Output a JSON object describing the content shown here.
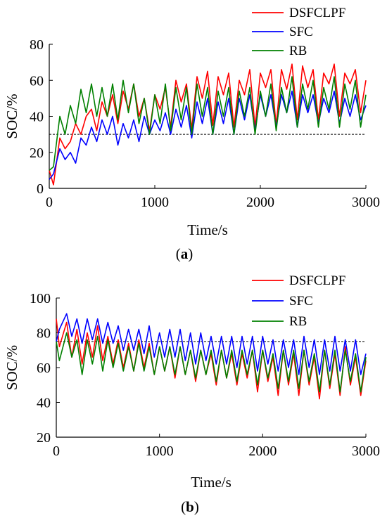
{
  "chart_data": [
    {
      "type": "line",
      "caption": "(a)",
      "caption_letter": "a",
      "xlabel": "Time/s",
      "ylabel": "SOC/%",
      "xlim": [
        0,
        3000
      ],
      "ylim": [
        0,
        80
      ],
      "xticks": [
        0,
        1000,
        2000,
        3000
      ],
      "yticks": [
        0,
        20,
        40,
        60,
        80
      ],
      "grid": false,
      "legend_position": "top-right",
      "reference_line": {
        "y": 30,
        "style": "dashed",
        "color": "#000000"
      },
      "series": [
        {
          "name": "DSFCLPF",
          "color": "#ff0000",
          "x": [
            0,
            40,
            100,
            150,
            200,
            250,
            300,
            350,
            400,
            450,
            500,
            550,
            600,
            650,
            700,
            750,
            800,
            850,
            900,
            950,
            1000,
            1050,
            1100,
            1150,
            1200,
            1250,
            1300,
            1350,
            1400,
            1450,
            1500,
            1550,
            1600,
            1650,
            1700,
            1750,
            1800,
            1850,
            1900,
            1950,
            2000,
            2050,
            2100,
            2150,
            2200,
            2250,
            2300,
            2350,
            2400,
            2450,
            2500,
            2550,
            2600,
            2650,
            2700,
            2750,
            2800,
            2850,
            2900,
            2950,
            3000
          ],
          "y": [
            10,
            2,
            28,
            22,
            26,
            36,
            30,
            40,
            44,
            32,
            48,
            40,
            52,
            36,
            54,
            44,
            58,
            40,
            50,
            32,
            52,
            44,
            56,
            34,
            60,
            48,
            58,
            33,
            62,
            50,
            65,
            35,
            62,
            52,
            64,
            34,
            60,
            52,
            66,
            34,
            64,
            56,
            66,
            35,
            66,
            55,
            69,
            38,
            68,
            56,
            66,
            38,
            64,
            58,
            69,
            40,
            64,
            58,
            66,
            42,
            60
          ]
        },
        {
          "name": "SFC",
          "color": "#0000ff",
          "x": [
            0,
            40,
            100,
            150,
            200,
            250,
            300,
            350,
            400,
            450,
            500,
            550,
            600,
            650,
            700,
            750,
            800,
            850,
            900,
            950,
            1000,
            1050,
            1100,
            1150,
            1200,
            1250,
            1300,
            1350,
            1400,
            1450,
            1500,
            1550,
            1600,
            1650,
            1700,
            1750,
            1800,
            1850,
            1900,
            1950,
            2000,
            2050,
            2100,
            2150,
            2200,
            2250,
            2300,
            2350,
            2400,
            2450,
            2500,
            2550,
            2600,
            2650,
            2700,
            2750,
            2800,
            2850,
            2900,
            2950,
            3000
          ],
          "y": [
            5,
            8,
            22,
            16,
            20,
            14,
            28,
            24,
            34,
            26,
            38,
            30,
            40,
            24,
            36,
            28,
            38,
            26,
            40,
            30,
            38,
            32,
            42,
            30,
            44,
            34,
            46,
            28,
            48,
            36,
            50,
            30,
            48,
            36,
            50,
            30,
            50,
            38,
            52,
            32,
            52,
            40,
            52,
            34,
            52,
            42,
            54,
            34,
            52,
            42,
            52,
            36,
            50,
            42,
            54,
            36,
            50,
            40,
            52,
            38,
            46
          ]
        },
        {
          "name": "RB",
          "color": "#008000",
          "x": [
            0,
            40,
            100,
            150,
            200,
            250,
            300,
            350,
            400,
            450,
            500,
            550,
            600,
            650,
            700,
            750,
            800,
            850,
            900,
            950,
            1000,
            1050,
            1100,
            1150,
            1200,
            1250,
            1300,
            1350,
            1400,
            1450,
            1500,
            1550,
            1600,
            1650,
            1700,
            1750,
            1800,
            1850,
            1900,
            1950,
            2000,
            2050,
            2100,
            2150,
            2200,
            2250,
            2300,
            2350,
            2400,
            2450,
            2500,
            2550,
            2600,
            2650,
            2700,
            2750,
            2800,
            2850,
            2900,
            2950,
            3000
          ],
          "y": [
            10,
            12,
            40,
            30,
            46,
            36,
            55,
            42,
            58,
            40,
            56,
            40,
            58,
            38,
            60,
            42,
            58,
            36,
            50,
            30,
            52,
            36,
            58,
            32,
            56,
            38,
            56,
            30,
            58,
            40,
            56,
            30,
            54,
            40,
            56,
            30,
            54,
            40,
            56,
            30,
            54,
            40,
            58,
            32,
            56,
            42,
            62,
            34,
            58,
            44,
            60,
            34,
            56,
            44,
            62,
            34,
            58,
            44,
            60,
            34,
            52
          ]
        }
      ]
    },
    {
      "type": "line",
      "caption": "(b)",
      "caption_letter": "b",
      "xlabel": "Time/s",
      "ylabel": "SOC/%",
      "xlim": [
        0,
        3000
      ],
      "ylim": [
        20,
        100
      ],
      "xticks": [
        0,
        1000,
        2000,
        3000
      ],
      "yticks": [
        20,
        40,
        60,
        80,
        100
      ],
      "grid": false,
      "legend_position": "top-right",
      "reference_line": {
        "y": 75,
        "style": "dashed",
        "color": "#000000"
      },
      "series": [
        {
          "name": "DSFCLPF",
          "color": "#ff0000",
          "x": [
            0,
            30,
            100,
            150,
            200,
            250,
            300,
            350,
            400,
            450,
            500,
            550,
            600,
            650,
            700,
            750,
            800,
            850,
            900,
            950,
            1000,
            1050,
            1100,
            1150,
            1200,
            1250,
            1300,
            1350,
            1400,
            1450,
            1500,
            1550,
            1600,
            1650,
            1700,
            1750,
            1800,
            1850,
            1900,
            1950,
            2000,
            2050,
            2100,
            2150,
            2200,
            2250,
            2300,
            2350,
            2400,
            2450,
            2500,
            2550,
            2600,
            2650,
            2700,
            2750,
            2800,
            2850,
            2900,
            2950,
            3000
          ],
          "y": [
            88,
            72,
            86,
            66,
            82,
            62,
            80,
            66,
            84,
            64,
            78,
            62,
            76,
            60,
            74,
            58,
            76,
            60,
            74,
            56,
            72,
            58,
            72,
            54,
            72,
            56,
            70,
            52,
            70,
            56,
            68,
            50,
            70,
            54,
            68,
            50,
            68,
            54,
            70,
            46,
            70,
            52,
            66,
            44,
            70,
            50,
            68,
            44,
            70,
            50,
            66,
            42,
            70,
            48,
            68,
            44,
            72,
            50,
            66,
            44,
            64
          ]
        },
        {
          "name": "SFC",
          "color": "#0000ff",
          "x": [
            0,
            30,
            100,
            150,
            200,
            250,
            300,
            350,
            400,
            450,
            500,
            550,
            600,
            650,
            700,
            750,
            800,
            850,
            900,
            950,
            1000,
            1050,
            1100,
            1150,
            1200,
            1250,
            1300,
            1350,
            1400,
            1450,
            1500,
            1550,
            1600,
            1650,
            1700,
            1750,
            1800,
            1850,
            1900,
            1950,
            2000,
            2050,
            2100,
            2150,
            2200,
            2250,
            2300,
            2350,
            2400,
            2450,
            2500,
            2550,
            2600,
            2650,
            2700,
            2750,
            2800,
            2850,
            2900,
            2950,
            3000
          ],
          "y": [
            75,
            82,
            91,
            78,
            88,
            74,
            88,
            76,
            88,
            74,
            86,
            74,
            84,
            70,
            82,
            70,
            82,
            68,
            84,
            66,
            80,
            66,
            82,
            66,
            82,
            64,
            80,
            62,
            80,
            64,
            78,
            62,
            78,
            62,
            78,
            60,
            78,
            62,
            78,
            58,
            78,
            62,
            76,
            58,
            76,
            60,
            76,
            56,
            78,
            60,
            76,
            56,
            76,
            58,
            78,
            58,
            76,
            58,
            76,
            56,
            68
          ]
        },
        {
          "name": "RB",
          "color": "#008000",
          "x": [
            0,
            30,
            100,
            150,
            200,
            250,
            300,
            350,
            400,
            450,
            500,
            550,
            600,
            650,
            700,
            750,
            800,
            850,
            900,
            950,
            1000,
            1050,
            1100,
            1150,
            1200,
            1250,
            1300,
            1350,
            1400,
            1450,
            1500,
            1550,
            1600,
            1650,
            1700,
            1750,
            1800,
            1850,
            1900,
            1950,
            2000,
            2050,
            2100,
            2150,
            2200,
            2250,
            2300,
            2350,
            2400,
            2450,
            2500,
            2550,
            2600,
            2650,
            2700,
            2750,
            2800,
            2850,
            2900,
            2950,
            3000
          ],
          "y": [
            75,
            64,
            80,
            66,
            76,
            56,
            76,
            62,
            78,
            58,
            76,
            60,
            74,
            58,
            72,
            58,
            74,
            58,
            72,
            56,
            72,
            58,
            72,
            56,
            72,
            56,
            70,
            54,
            70,
            56,
            70,
            52,
            70,
            54,
            70,
            52,
            70,
            56,
            70,
            50,
            70,
            54,
            68,
            48,
            70,
            52,
            70,
            48,
            70,
            52,
            68,
            46,
            70,
            50,
            70,
            46,
            70,
            52,
            68,
            46,
            66
          ]
        }
      ]
    }
  ]
}
